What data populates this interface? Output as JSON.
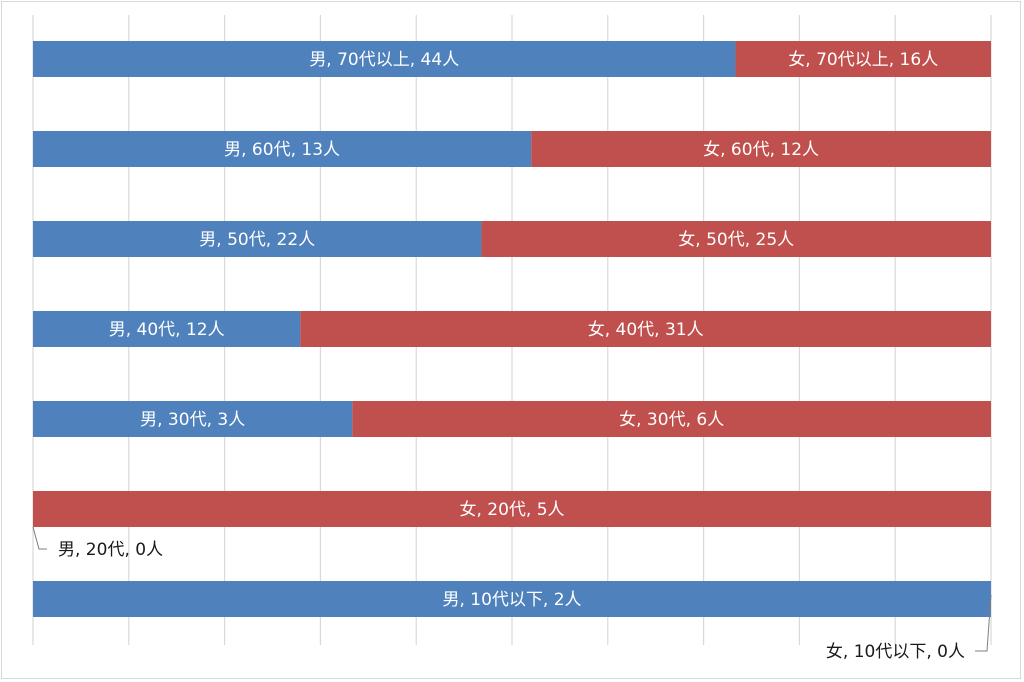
{
  "chart_data": {
    "type": "bar",
    "orientation": "horizontal",
    "stacking": "percent",
    "title": "",
    "xlabel": "",
    "ylabel": "",
    "xlim": [
      0,
      100
    ],
    "grid": true,
    "legend": "none",
    "categories": [
      "70代以上",
      "60代",
      "50代",
      "40代",
      "30代",
      "20代",
      "10代以下"
    ],
    "series": [
      {
        "name": "男",
        "color": "#4f81bd",
        "values": [
          44,
          13,
          22,
          12,
          3,
          0,
          2
        ]
      },
      {
        "name": "女",
        "color": "#c0504d",
        "values": [
          16,
          12,
          25,
          31,
          6,
          5,
          0
        ]
      }
    ],
    "data_labels": [
      [
        "男, 70代以上, 44人",
        "男, 60代, 13人",
        "男, 50代, 22人",
        "男, 40代, 12人",
        "男, 30代, 3人",
        "男, 20代, 0人",
        "男, 10代以下, 2人"
      ],
      [
        "女, 70代以上, 16人",
        "女, 60代, 12人",
        "女, 50代, 25人",
        "女, 40代, 31人",
        "女, 30代, 6人",
        "女, 20代, 5人",
        "女, 10代以下, 0人"
      ]
    ],
    "gridline_ticks": [
      0,
      10,
      20,
      30,
      40,
      50,
      60,
      70,
      80,
      90,
      100
    ]
  },
  "colors": {
    "male": "#4f81bd",
    "female": "#c0504d",
    "grid": "#d9d9d9",
    "frame": "#d9d9d9"
  }
}
